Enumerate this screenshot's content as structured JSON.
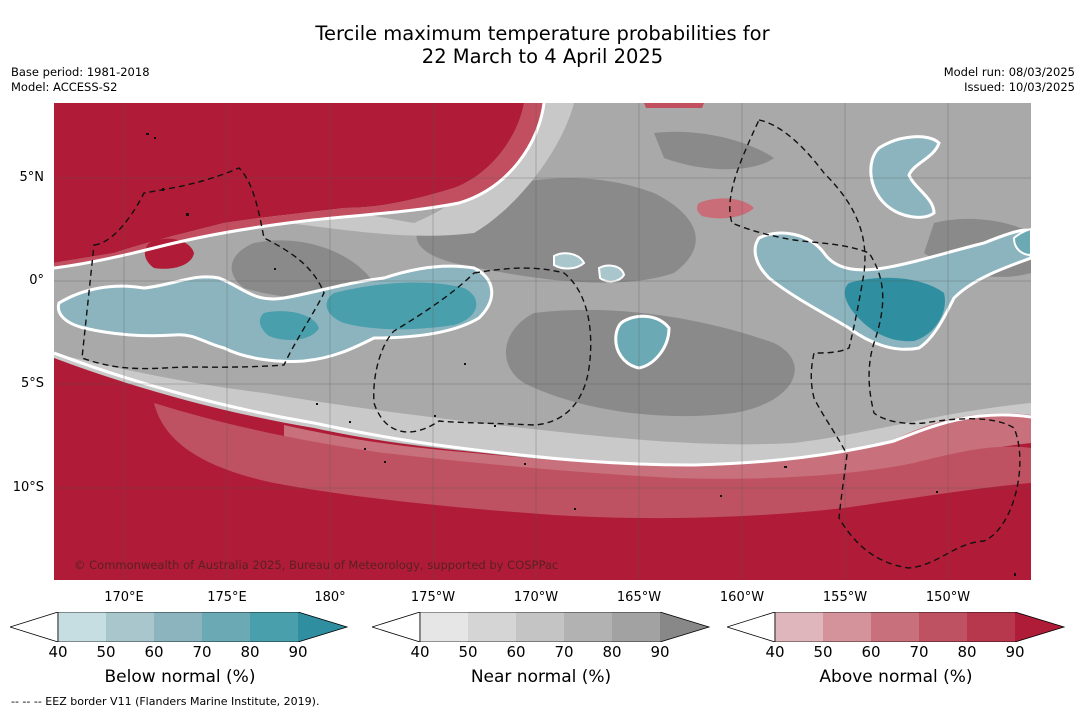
{
  "title": {
    "line1": "Tercile maximum temperature probabilities for",
    "line2": "22 March to 4 April 2025"
  },
  "meta_left": {
    "base_period": "Base period: 1981-2018",
    "model": "Model: ACCESS-S2"
  },
  "meta_right": {
    "model_run": "Model run: 08/03/2025",
    "issued": "Issued: 10/03/2025"
  },
  "map": {
    "lat_labels": [
      "5°N",
      "0°",
      "5°S",
      "10°S"
    ],
    "lon_labels": [
      "170°E",
      "175°E",
      "180°",
      "175°W",
      "170°W",
      "165°W",
      "160°W",
      "155°W",
      "150°W"
    ],
    "copyright": "© Commonwealth of Australia 2025, Bureau of Meteorology, supported by COSPPac",
    "colors": {
      "above": [
        "#dcb5bb",
        "#d49199",
        "#c96d79",
        "#c24f5f",
        "#b93548",
        "#b01c37"
      ],
      "near": [
        "#ececec",
        "#d9d9d9",
        "#c6c6c6",
        "#b3b3b3",
        "#a2a2a2",
        "#888888"
      ],
      "below": [
        "#c6dde2",
        "#a8c6cc",
        "#8bb4bf",
        "#6baab5",
        "#4a9fac",
        "#2f8fa0"
      ]
    }
  },
  "colorbars": [
    {
      "id": "below",
      "title": "Below normal (%)",
      "ticks": [
        "40",
        "50",
        "60",
        "70",
        "80",
        "90"
      ],
      "colors": [
        "#c6dde2",
        "#a8c6cc",
        "#8bb4bf",
        "#6baab5",
        "#4a9fac",
        "#2f8fa0"
      ]
    },
    {
      "id": "near",
      "title": "Near normal (%)",
      "ticks": [
        "40",
        "50",
        "60",
        "70",
        "80",
        "90"
      ],
      "colors": [
        "#e6e6e6",
        "#d5d5d5",
        "#c4c4c4",
        "#b2b2b2",
        "#a2a2a2",
        "#888888"
      ]
    },
    {
      "id": "above",
      "title": "Above normal (%)",
      "ticks": [
        "40",
        "50",
        "60",
        "70",
        "80",
        "90"
      ],
      "colors": [
        "#deb6bb",
        "#d4939b",
        "#c8707b",
        "#bf5262",
        "#b7384c",
        "#af1c37"
      ]
    }
  ],
  "footnote": "--  --  -- EEZ border V11 (Flanders Marine Institute, 2019)."
}
